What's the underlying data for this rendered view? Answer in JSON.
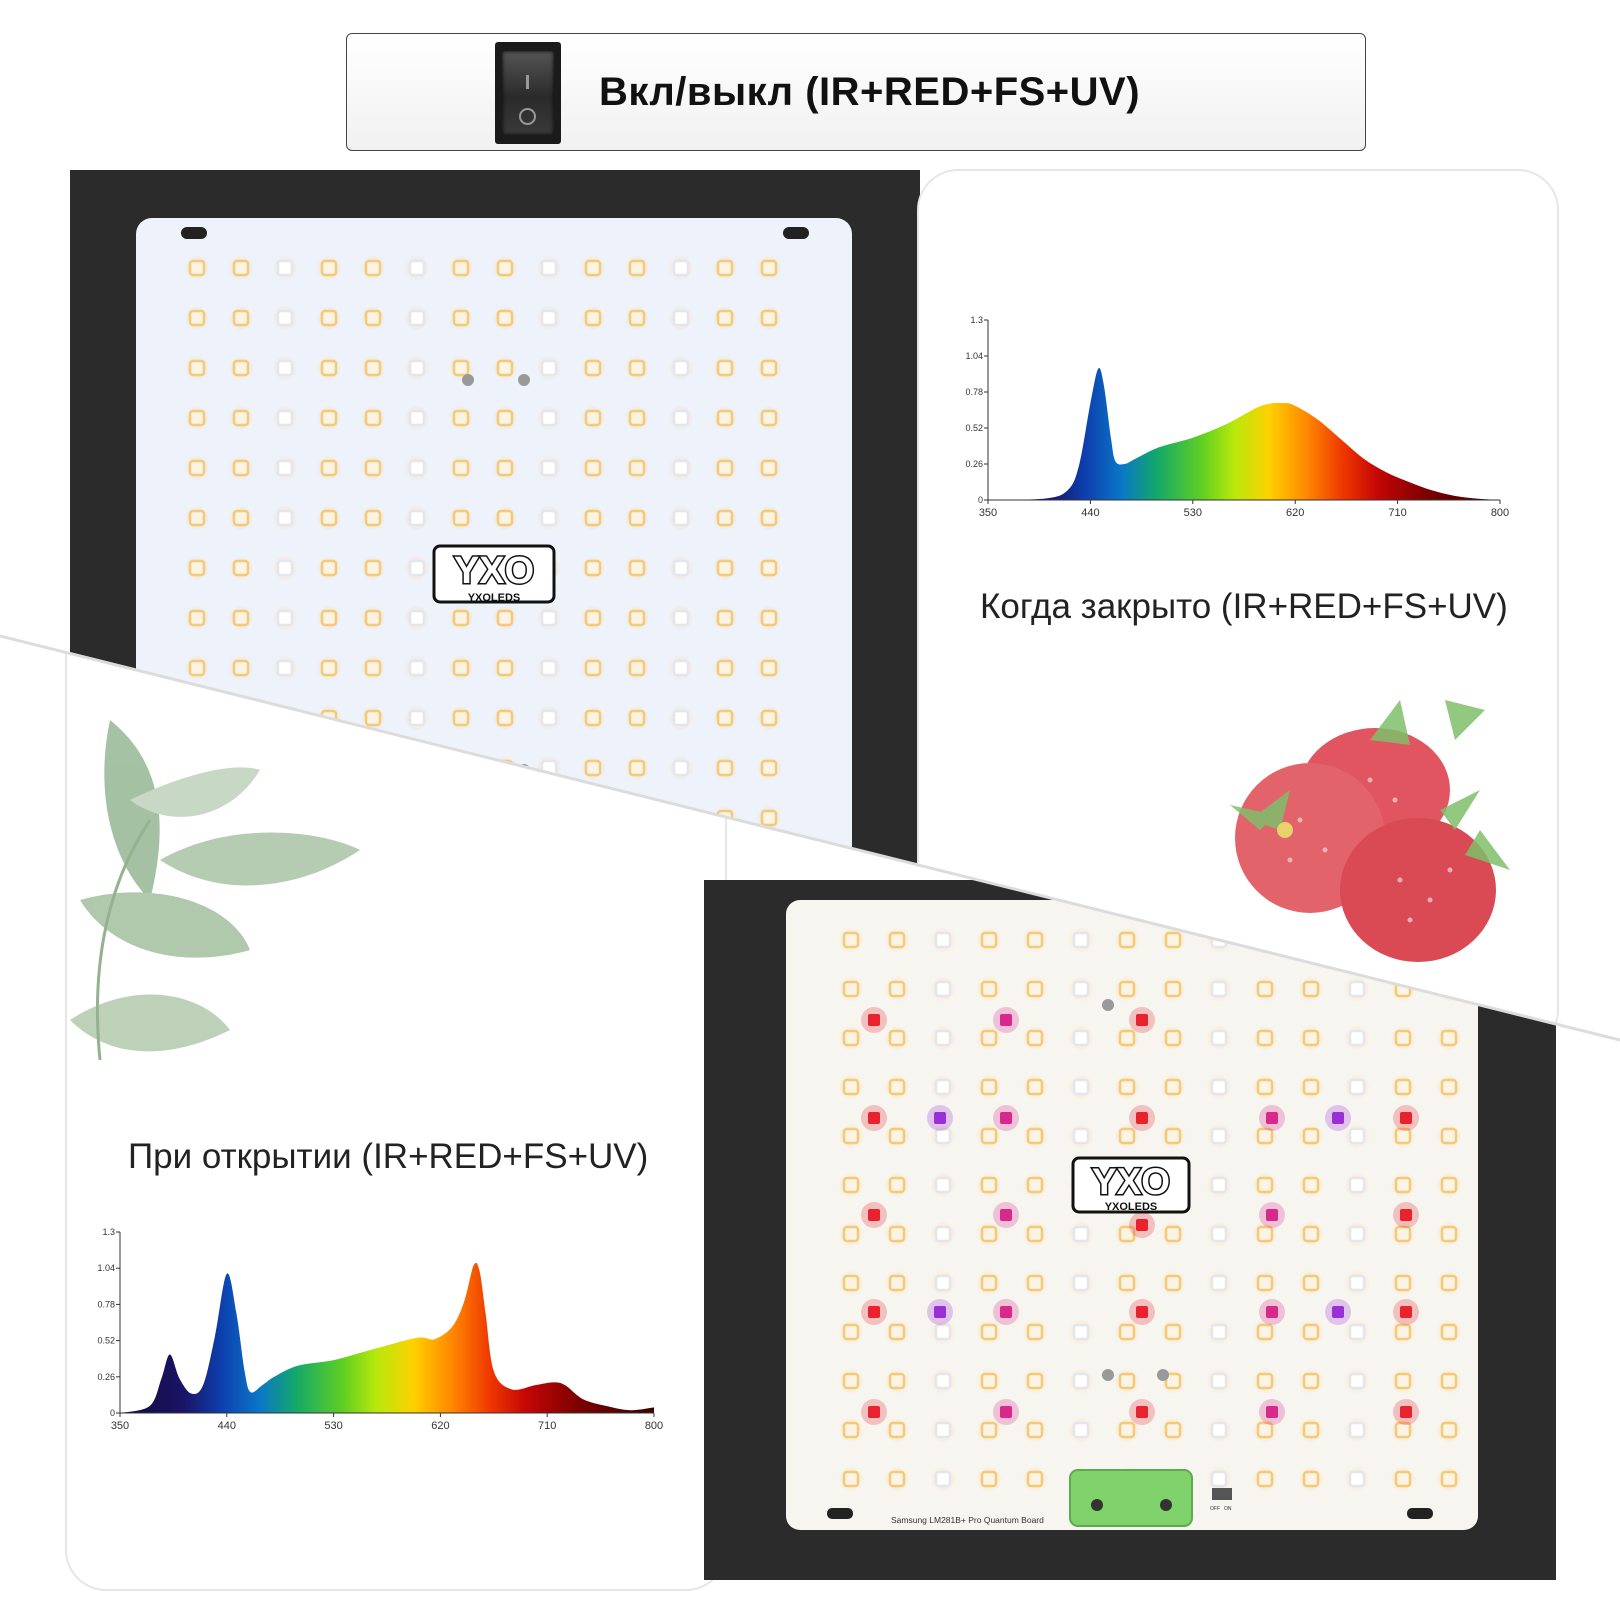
{
  "header": {
    "switch_icon": "rocker-switch-icon",
    "title": "Вкл/выкл (IR+RED+FS+UV)"
  },
  "panel_closed": {
    "caption": "Когда закрыто (IR+RED+FS+UV)",
    "logo_text": "YXO",
    "logo_subtext": "YXOLEDS"
  },
  "panel_open": {
    "caption": "При открытии (IR+RED+FS+UV)",
    "logo_text": "YXO",
    "logo_subtext": "YXOLEDS",
    "board_label": "Samsung LM281B+ Pro Quantum Board",
    "switch_labels": [
      "OFF",
      "ON"
    ]
  },
  "colors": {
    "dark_frame": "#2b2b2b",
    "led_warm": "#f3c97a",
    "led_red": "#e8232e",
    "led_magenta": "#d8288c",
    "led_uv": "#9b2fd6",
    "driver_green": "#7fd36a"
  },
  "chart_data": [
    {
      "type": "area",
      "x_ticks": [
        "350",
        "440",
        "530",
        "620",
        "710",
        "800"
      ],
      "y_ticks": [
        "0",
        "0.26",
        "0.52",
        "0.78",
        "1.04",
        "1.3"
      ],
      "ylim": [
        0,
        1.3
      ],
      "xlim": [
        350,
        800
      ],
      "x": [
        350,
        400,
        420,
        430,
        440,
        447,
        452,
        458,
        462,
        470,
        480,
        500,
        530,
        560,
        590,
        610,
        620,
        640,
        660,
        680,
        700,
        720,
        740,
        760,
        780,
        800
      ],
      "y": [
        0.0,
        0.01,
        0.07,
        0.25,
        0.7,
        0.95,
        0.82,
        0.45,
        0.28,
        0.26,
        0.3,
        0.38,
        0.45,
        0.55,
        0.68,
        0.7,
        0.68,
        0.58,
        0.44,
        0.3,
        0.2,
        0.13,
        0.07,
        0.03,
        0.01,
        0.0
      ]
    },
    {
      "type": "area",
      "x_ticks": [
        "350",
        "440",
        "530",
        "620",
        "710",
        "800"
      ],
      "y_ticks": [
        "0",
        "0.26",
        "0.52",
        "0.78",
        "1.04",
        "1.3"
      ],
      "ylim": [
        0,
        1.3
      ],
      "xlim": [
        350,
        800
      ],
      "x": [
        350,
        375,
        385,
        392,
        400,
        410,
        420,
        430,
        440,
        448,
        455,
        460,
        470,
        480,
        500,
        530,
        560,
        600,
        615,
        630,
        640,
        648,
        653,
        658,
        665,
        680,
        700,
        715,
        725,
        740,
        760,
        780,
        800
      ],
      "y": [
        0.0,
        0.05,
        0.25,
        0.42,
        0.25,
        0.14,
        0.2,
        0.55,
        1.0,
        0.72,
        0.3,
        0.15,
        0.2,
        0.26,
        0.34,
        0.38,
        0.45,
        0.54,
        0.53,
        0.62,
        0.8,
        1.06,
        1.02,
        0.72,
        0.3,
        0.17,
        0.2,
        0.22,
        0.2,
        0.1,
        0.05,
        0.02,
        0.04
      ]
    }
  ]
}
